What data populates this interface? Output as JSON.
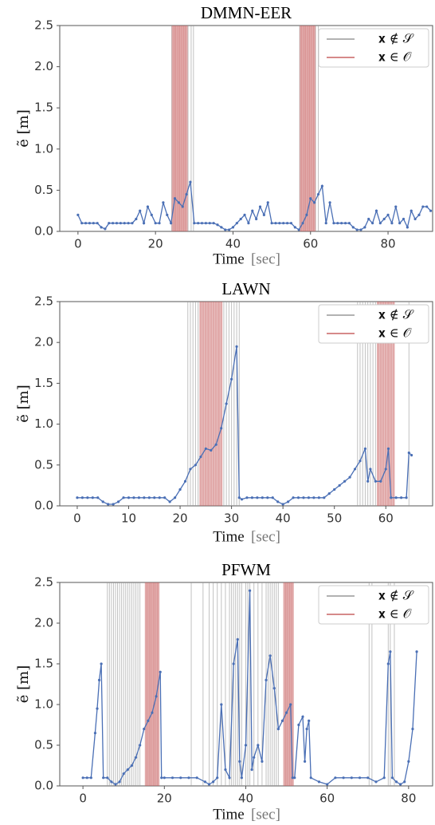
{
  "chart_data": [
    {
      "type": "line",
      "title": "DMMN-EER",
      "xlabel": "Time",
      "xlabel_unit": "[sec]",
      "ylabel": "ẽ [m]",
      "xlim": [
        -4.7,
        91.5
      ],
      "ylim": [
        0,
        2.5
      ],
      "xticks": [
        0,
        20,
        40,
        60,
        80
      ],
      "yticks": [
        {
          "value": 0,
          "label": "0.0"
        },
        {
          "value": 0.5,
          "label": "0.5"
        },
        {
          "value": 1,
          "label": "1.0"
        },
        {
          "value": 1.5,
          "label": "1.5"
        },
        {
          "value": 2,
          "label": "2.0"
        },
        {
          "value": 2.5,
          "label": "2.5"
        }
      ],
      "color": "#4a6fb5",
      "x": [
        0,
        1,
        2,
        3,
        4,
        5,
        6,
        7,
        8,
        9,
        10,
        11,
        12,
        13,
        14,
        15,
        16,
        17,
        18,
        19,
        20,
        21,
        22,
        23,
        24,
        25,
        26,
        27,
        28,
        29,
        30,
        31,
        32,
        33,
        34,
        35,
        36,
        37,
        38,
        39,
        40,
        41,
        42,
        43,
        44,
        45,
        46,
        47,
        48,
        49,
        50,
        51,
        52,
        53,
        54,
        55,
        56,
        57,
        58,
        59,
        60,
        61,
        62,
        63,
        64,
        65,
        66,
        67,
        68,
        69,
        70,
        71,
        72,
        73,
        74,
        75,
        76,
        77,
        78,
        79,
        80,
        81,
        82,
        83,
        84,
        85,
        86,
        87,
        88,
        89,
        90,
        91
      ],
      "values": [
        0.2,
        0.1,
        0.1,
        0.1,
        0.1,
        0.1,
        0.05,
        0.03,
        0.1,
        0.1,
        0.1,
        0.1,
        0.1,
        0.1,
        0.1,
        0.15,
        0.25,
        0.1,
        0.3,
        0.2,
        0.1,
        0.1,
        0.35,
        0.2,
        0.1,
        0.4,
        0.35,
        0.3,
        0.45,
        0.6,
        0.1,
        0.1,
        0.1,
        0.1,
        0.1,
        0.1,
        0.08,
        0.05,
        0.02,
        0.02,
        0.05,
        0.1,
        0.15,
        0.2,
        0.1,
        0.25,
        0.15,
        0.3,
        0.2,
        0.35,
        0.1,
        0.1,
        0.1,
        0.1,
        0.1,
        0.1,
        0.05,
        0.02,
        0.1,
        0.2,
        0.4,
        0.35,
        0.45,
        0.55,
        0.1,
        0.35,
        0.1,
        0.1,
        0.1,
        0.1,
        0.1,
        0.05,
        0.02,
        0.02,
        0.05,
        0.15,
        0.1,
        0.25,
        0.1,
        0.15,
        0.2,
        0.1,
        0.3,
        0.1,
        0.15,
        0.05,
        0.25,
        0.15,
        0.2,
        0.3,
        0.3,
        0.25
      ],
      "vlines": [
        {
          "name": "𝐱 ∉ 𝒮",
          "color": "#999999",
          "x": [
            24.2,
            28.4,
            29.2,
            29.8,
            57.2,
            61.3,
            62
          ]
        },
        {
          "name": "𝐱 ∈ 𝒪",
          "color": "#c96464",
          "x": [
            24.5,
            25,
            25.5,
            26,
            26.5,
            27,
            27.5,
            28,
            57.5,
            58,
            58.5,
            59,
            59.5,
            60,
            60.5,
            61
          ]
        }
      ]
    },
    {
      "type": "line",
      "title": "LAWN",
      "xlabel": "Time",
      "xlabel_unit": "[sec]",
      "ylabel": "ẽ [m]",
      "xlim": [
        -3.4,
        69.1
      ],
      "ylim": [
        0,
        2.5
      ],
      "xticks": [
        0,
        10,
        20,
        30,
        40,
        50,
        60
      ],
      "yticks": [
        {
          "value": 0,
          "label": "0.0"
        },
        {
          "value": 0.5,
          "label": "0.5"
        },
        {
          "value": 1,
          "label": "1.0"
        },
        {
          "value": 1.5,
          "label": "1.5"
        },
        {
          "value": 2,
          "label": "2.0"
        },
        {
          "value": 2.5,
          "label": "2.5"
        }
      ],
      "color": "#4a6fb5",
      "x": [
        0,
        1,
        2,
        3,
        4,
        5,
        6,
        7,
        8,
        9,
        10,
        11,
        12,
        13,
        14,
        15,
        16,
        17,
        18,
        19,
        20,
        21,
        22,
        23,
        24,
        25,
        26,
        27,
        28,
        29,
        30,
        31,
        31.5,
        32,
        33,
        34,
        35,
        36,
        37,
        38,
        39,
        40,
        41,
        42,
        43,
        44,
        45,
        46,
        47,
        48,
        49,
        50,
        51,
        52,
        53,
        54,
        55,
        56,
        56.5,
        57,
        58,
        59,
        60,
        60.5,
        61,
        62,
        63,
        64,
        64.5,
        65
      ],
      "values": [
        0.1,
        0.1,
        0.1,
        0.1,
        0.1,
        0.05,
        0.02,
        0.02,
        0.05,
        0.1,
        0.1,
        0.1,
        0.1,
        0.1,
        0.1,
        0.1,
        0.1,
        0.1,
        0.05,
        0.1,
        0.2,
        0.3,
        0.45,
        0.5,
        0.6,
        0.7,
        0.68,
        0.75,
        0.95,
        1.25,
        1.55,
        1.95,
        0.1,
        0.08,
        0.1,
        0.1,
        0.1,
        0.1,
        0.1,
        0.1,
        0.05,
        0.02,
        0.05,
        0.1,
        0.1,
        0.1,
        0.1,
        0.1,
        0.1,
        0.1,
        0.15,
        0.2,
        0.25,
        0.3,
        0.35,
        0.45,
        0.55,
        0.7,
        0.3,
        0.45,
        0.3,
        0.3,
        0.45,
        0.7,
        0.1,
        0.1,
        0.1,
        0.1,
        0.65,
        0.62
      ],
      "vlines": [
        {
          "name": "𝐱 ∉ 𝒮",
          "color": "#999999",
          "x": [
            21.5,
            22,
            22.5,
            23,
            23.5,
            28.5,
            29,
            29.5,
            30,
            30.5,
            31,
            31.5,
            54.5,
            55,
            55.5,
            56,
            56.5,
            57,
            57.5,
            58,
            64.5
          ]
        },
        {
          "name": "𝐱 ∈ 𝒪",
          "color": "#c96464",
          "x": [
            24,
            24.5,
            25,
            25.5,
            26,
            26.5,
            27,
            27.5,
            28,
            58.5,
            59,
            59.5,
            60,
            60.5,
            61,
            61.5
          ]
        }
      ]
    },
    {
      "type": "line",
      "title": "PFWM",
      "xlabel": "Time",
      "xlabel_unit": "[sec]",
      "ylabel": "ẽ [m]",
      "xlim": [
        -5.7,
        85.9
      ],
      "ylim": [
        0,
        2.5
      ],
      "xticks": [
        0,
        20,
        40,
        60,
        80
      ],
      "yticks": [
        {
          "value": 0,
          "label": "0.0"
        },
        {
          "value": 0.5,
          "label": "0.5"
        },
        {
          "value": 1,
          "label": "1.0"
        },
        {
          "value": 1.5,
          "label": "1.5"
        },
        {
          "value": 2,
          "label": "2.0"
        },
        {
          "value": 2.5,
          "label": "2.5"
        }
      ],
      "color": "#4a6fb5",
      "x": [
        0,
        1,
        2,
        3,
        3.5,
        4,
        4.5,
        5,
        6,
        7,
        8,
        9,
        10,
        11,
        12,
        13,
        14,
        15,
        16,
        17,
        18,
        19,
        19.3,
        20,
        22,
        24,
        26,
        28,
        30,
        31,
        32,
        33,
        34,
        35,
        36,
        37,
        38,
        38.5,
        39,
        40,
        41,
        41.5,
        42,
        43,
        44,
        45,
        46,
        47,
        48,
        49,
        50,
        51,
        51.5,
        52,
        53,
        54,
        54.5,
        55,
        55.5,
        56,
        58,
        60,
        62,
        64,
        66,
        68,
        70,
        72,
        74,
        75,
        75.5,
        76,
        77,
        78,
        79,
        80,
        81,
        82
      ],
      "values": [
        0.1,
        0.1,
        0.1,
        0.65,
        0.95,
        1.3,
        1.5,
        0.1,
        0.1,
        0.05,
        0.02,
        0.05,
        0.15,
        0.2,
        0.25,
        0.35,
        0.5,
        0.7,
        0.8,
        0.9,
        1.1,
        1.4,
        0.1,
        0.1,
        0.1,
        0.1,
        0.1,
        0.1,
        0.05,
        0.02,
        0.05,
        0.1,
        1.0,
        0.2,
        0.1,
        1.5,
        1.8,
        0.3,
        0.1,
        0.5,
        2.4,
        0.2,
        0.35,
        0.5,
        0.3,
        1.3,
        1.6,
        1.2,
        0.7,
        0.8,
        0.9,
        1.0,
        0.1,
        0.1,
        0.75,
        0.85,
        0.3,
        0.7,
        0.8,
        0.1,
        0.05,
        0.02,
        0.1,
        0.1,
        0.1,
        0.1,
        0.1,
        0.05,
        0.1,
        1.5,
        1.65,
        0.1,
        0.05,
        0.02,
        0.05,
        0.3,
        0.7,
        1.65
      ],
      "vlines": [
        {
          "name": "𝐱 ∉ 𝒮",
          "color": "#999999",
          "x": [
            6,
            6.5,
            7,
            7.5,
            8,
            8.5,
            9,
            9.5,
            10,
            10.5,
            11,
            11.5,
            12,
            12.5,
            13,
            13.5,
            14,
            26.6,
            29.5,
            31,
            32,
            33,
            34,
            35,
            36,
            36.5,
            37,
            37.5,
            38,
            38.5,
            39,
            40,
            40.5,
            41,
            42,
            43,
            44,
            45,
            45.5,
            46,
            46.5,
            47,
            47.5,
            48,
            70.3,
            71,
            75,
            75.5,
            76.5
          ]
        },
        {
          "name": "𝐱 ∈ 𝒪",
          "color": "#c96464",
          "x": [
            15.5,
            16,
            16.5,
            17,
            17.5,
            18,
            18.5,
            49.5,
            50,
            50.5,
            51,
            51.5
          ]
        }
      ]
    }
  ]
}
